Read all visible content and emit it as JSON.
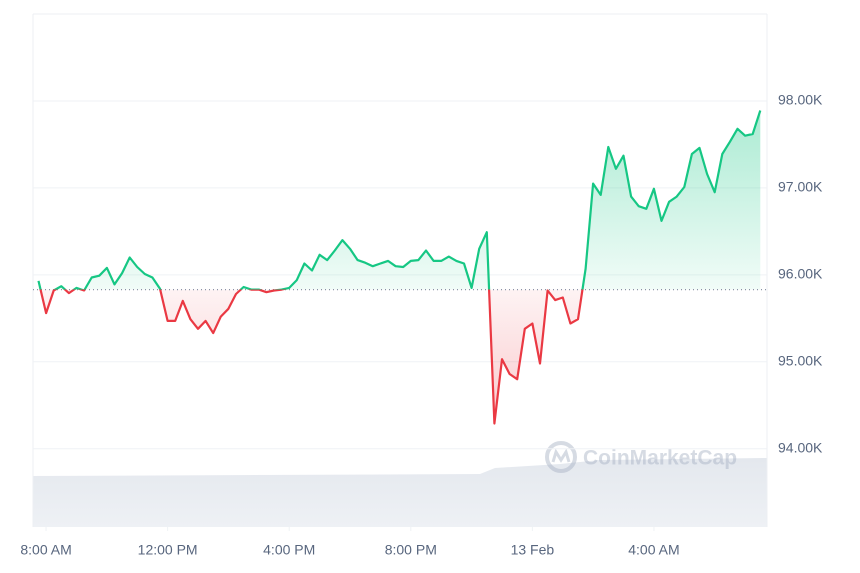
{
  "chart_data": {
    "type": "line",
    "watermark": "CoinMarketCap",
    "xlim": [
      7.57,
      31.72
    ],
    "xticks": [
      {
        "value": 8,
        "label": "8:00 AM"
      },
      {
        "value": 12,
        "label": "12:00 PM"
      },
      {
        "value": 16,
        "label": "4:00 PM"
      },
      {
        "value": 20,
        "label": "8:00 PM"
      },
      {
        "value": 24,
        "label": "13 Feb"
      },
      {
        "value": 28,
        "label": "4:00 AM"
      }
    ],
    "ylim": [
      93100,
      99000
    ],
    "yticks": [
      {
        "value": 94000,
        "label": "94.00K"
      },
      {
        "value": 95000,
        "label": "95.00K"
      },
      {
        "value": 96000,
        "label": "96.00K"
      },
      {
        "value": 97000,
        "label": "97.00K"
      },
      {
        "value": 98000,
        "label": "98.00K"
      }
    ],
    "grid": true,
    "baseline": 95830,
    "up_color": "#16c784",
    "down_color": "#ea3943",
    "x": [
      7.75,
      8,
      8.25,
      8.5,
      8.75,
      9,
      9.25,
      9.5,
      9.75,
      10,
      10.25,
      10.5,
      10.75,
      11,
      11.25,
      11.5,
      11.75,
      12,
      12.25,
      12.5,
      12.75,
      13,
      13.25,
      13.5,
      13.75,
      14,
      14.25,
      14.5,
      14.75,
      15,
      15.25,
      15.5,
      15.75,
      16,
      16.25,
      16.5,
      16.75,
      17,
      17.25,
      17.5,
      17.75,
      18,
      18.25,
      18.5,
      18.75,
      19,
      19.25,
      19.5,
      19.75,
      20,
      20.25,
      20.5,
      20.75,
      21,
      21.25,
      21.5,
      21.75,
      22,
      22.25,
      22.5,
      22.75,
      23,
      23.25,
      23.5,
      23.75,
      24,
      24.25,
      24.5,
      24.75,
      25,
      25.25,
      25.5,
      25.75,
      26,
      26.25,
      26.5,
      26.75,
      27,
      27.25,
      27.5,
      27.75,
      28,
      28.25,
      28.5,
      28.75,
      29,
      29.25,
      29.5,
      29.75,
      30,
      30.25,
      30.5,
      30.75,
      31,
      31.25,
      31.5
    ],
    "values": [
      95930,
      95560,
      95820,
      95870,
      95790,
      95850,
      95820,
      95970,
      95990,
      96080,
      95890,
      96020,
      96200,
      96090,
      96010,
      95970,
      95840,
      95470,
      95470,
      95700,
      95490,
      95380,
      95470,
      95330,
      95520,
      95610,
      95780,
      95860,
      95830,
      95830,
      95800,
      95820,
      95830,
      95850,
      95940,
      96130,
      96050,
      96230,
      96170,
      96280,
      96400,
      96300,
      96170,
      96140,
      96100,
      96130,
      96160,
      96100,
      96090,
      96160,
      96170,
      96280,
      96160,
      96160,
      96210,
      96160,
      96130,
      95850,
      96300,
      96490,
      94290,
      95030,
      94860,
      94800,
      95380,
      95440,
      94980,
      95820,
      95710,
      95740,
      95440,
      95490,
      96070,
      97050,
      96920,
      97470,
      97220,
      97370,
      96900,
      96790,
      96760,
      96990,
      96620,
      96840,
      96900,
      97010,
      97390,
      97460,
      97160,
      96950,
      97390,
      97530,
      97680,
      97600,
      97620,
      97890
    ]
  }
}
